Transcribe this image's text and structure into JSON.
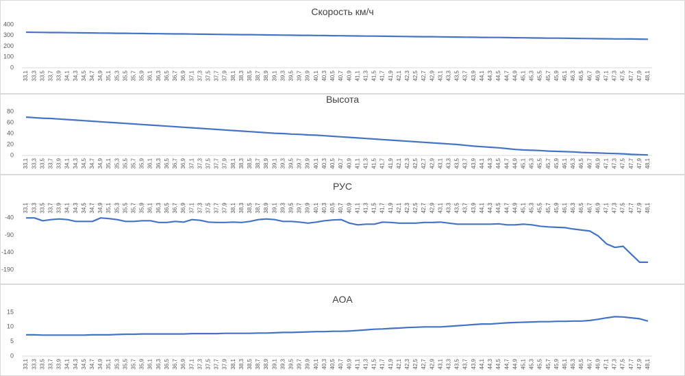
{
  "chart_data": [
    {
      "type": "line",
      "title": "Скорость км/ч",
      "categories": [
        "33,1",
        "33,3",
        "33,5",
        "33,7",
        "33,9",
        "34,1",
        "34,3",
        "34,5",
        "34,7",
        "34,9",
        "35,1",
        "35,3",
        "35,5",
        "35,7",
        "35,9",
        "36,1",
        "36,3",
        "36,5",
        "36,7",
        "36,9",
        "37,1",
        "37,3",
        "37,5",
        "37,7",
        "37,9",
        "38,1",
        "38,3",
        "38,5",
        "38,7",
        "38,9",
        "39,1",
        "39,3",
        "39,5",
        "39,7",
        "39,9",
        "40,1",
        "40,3",
        "40,5",
        "40,7",
        "40,9",
        "41,1",
        "41,3",
        "41,5",
        "41,7",
        "41,9",
        "42,1",
        "42,3",
        "42,5",
        "42,7",
        "42,9",
        "43,1",
        "43,3",
        "43,5",
        "43,7",
        "43,9",
        "44,1",
        "44,3",
        "44,5",
        "44,7",
        "44,9",
        "45,1",
        "45,3",
        "45,5",
        "45,7",
        "45,9",
        "46,1",
        "46,3",
        "46,5",
        "46,7",
        "46,9",
        "47,1",
        "47,3",
        "47,5",
        "47,7",
        "47,9",
        "48,1"
      ],
      "series": [
        {
          "color": "#4472c4",
          "values": [
            330,
            329,
            328,
            327,
            327,
            326,
            325,
            324,
            323,
            322,
            321,
            320,
            320,
            319,
            318,
            317,
            316,
            315,
            314,
            314,
            313,
            312,
            311,
            310,
            309,
            308,
            307,
            307,
            306,
            305,
            304,
            303,
            302,
            301,
            301,
            300,
            299,
            298,
            297,
            296,
            295,
            294,
            294,
            293,
            292,
            291,
            290,
            289,
            288,
            288,
            287,
            286,
            285,
            284,
            283,
            282,
            281,
            281,
            280,
            279,
            278,
            277,
            276,
            275,
            275,
            274,
            273,
            272,
            271,
            270,
            269,
            268,
            268,
            267,
            266,
            265
          ]
        }
      ],
      "ylim": [
        0,
        400
      ],
      "yticks": [
        0,
        100,
        200,
        300,
        400
      ]
    },
    {
      "type": "line",
      "title": "Высота",
      "categories": [
        "33,1",
        "33,3",
        "33,5",
        "33,7",
        "33,9",
        "34,1",
        "34,3",
        "34,5",
        "34,7",
        "34,9",
        "35,1",
        "35,3",
        "35,5",
        "35,7",
        "35,9",
        "36,1",
        "36,3",
        "36,5",
        "36,7",
        "36,9",
        "37,1",
        "37,3",
        "37,5",
        "37,7",
        "37,9",
        "38,1",
        "38,3",
        "38,5",
        "38,7",
        "38,9",
        "39,1",
        "39,3",
        "39,5",
        "39,7",
        "39,9",
        "40,1",
        "40,3",
        "40,5",
        "40,7",
        "40,9",
        "41,1",
        "41,3",
        "41,5",
        "41,7",
        "41,9",
        "42,1",
        "42,3",
        "42,5",
        "42,7",
        "42,9",
        "43,1",
        "43,3",
        "43,5",
        "43,7",
        "43,9",
        "44,1",
        "44,3",
        "44,5",
        "44,7",
        "44,9",
        "45,1",
        "45,3",
        "45,5",
        "45,7",
        "45,9",
        "46,1",
        "46,3",
        "46,5",
        "46,7",
        "46,9",
        "47,1",
        "47,3",
        "47,5",
        "47,7",
        "47,9",
        "48,1"
      ],
      "series": [
        {
          "color": "#4472c4",
          "values": [
            70,
            69,
            68,
            67.5,
            66.5,
            65.5,
            64.5,
            63.5,
            62.5,
            61.5,
            60.5,
            59.5,
            58.5,
            57.5,
            56.5,
            55.5,
            54.5,
            53.5,
            52.5,
            51.5,
            50.5,
            49.5,
            48.5,
            47.5,
            46.5,
            45.5,
            44.5,
            43.5,
            42.5,
            41.5,
            40.5,
            40,
            39,
            38.5,
            37.5,
            37,
            36,
            35,
            34,
            33,
            32,
            31,
            30,
            29,
            28,
            27,
            26,
            25,
            24,
            23,
            22,
            21,
            20,
            18.5,
            17,
            16,
            15,
            14,
            12.5,
            11,
            10,
            9.5,
            9,
            8,
            7.5,
            7,
            6.5,
            5.5,
            5,
            4.5,
            4,
            3.5,
            3,
            2,
            1.5,
            1
          ]
        }
      ],
      "ylim": [
        0,
        80
      ],
      "yticks": [
        0,
        20,
        40,
        60,
        80
      ]
    },
    {
      "type": "line",
      "title": "РУС",
      "categories": [
        "33,1",
        "33,3",
        "33,5",
        "33,7",
        "33,9",
        "34,1",
        "34,3",
        "34,5",
        "34,7",
        "34,9",
        "35,1",
        "35,3",
        "35,5",
        "35,7",
        "35,9",
        "36,1",
        "36,3",
        "36,5",
        "36,7",
        "36,9",
        "37,1",
        "37,3",
        "37,5",
        "37,7",
        "37,9",
        "38,1",
        "38,3",
        "38,5",
        "38,7",
        "38,9",
        "39,1",
        "39,3",
        "39,5",
        "39,7",
        "39,9",
        "40,1",
        "40,3",
        "40,5",
        "40,7",
        "40,9",
        "41,1",
        "41,3",
        "41,5",
        "41,7",
        "41,9",
        "42,1",
        "42,3",
        "42,5",
        "42,7",
        "42,9",
        "43,1",
        "43,3",
        "43,5",
        "43,7",
        "43,9",
        "44,1",
        "44,3",
        "44,5",
        "44,7",
        "44,9",
        "45,1",
        "45,3",
        "45,5",
        "45,7",
        "45,9",
        "46,1",
        "46,3",
        "46,5",
        "46,7",
        "46,9",
        "47,1",
        "47,3",
        "47,5",
        "47,7",
        "47,9",
        "48,1"
      ],
      "series": [
        {
          "color": "#4472c4",
          "values": [
            -40,
            -40,
            -48,
            -45,
            -43,
            -45,
            -50,
            -50,
            -50,
            -40,
            -42,
            -45,
            -50,
            -50,
            -48,
            -48,
            -53,
            -53,
            -50,
            -52,
            -45,
            -47,
            -52,
            -53,
            -53,
            -52,
            -53,
            -50,
            -45,
            -43,
            -45,
            -50,
            -50,
            -52,
            -55,
            -52,
            -48,
            -46,
            -45,
            -55,
            -60,
            -58,
            -58,
            -52,
            -53,
            -55,
            -55,
            -55,
            -53,
            -53,
            -52,
            -55,
            -58,
            -58,
            -58,
            -58,
            -58,
            -57,
            -60,
            -60,
            -58,
            -60,
            -64,
            -66,
            -67,
            -68,
            -72,
            -75,
            -78,
            -92,
            -115,
            -125,
            -122,
            -145,
            -168,
            -168
          ]
        }
      ],
      "ylim": [
        -190,
        0
      ],
      "yticks": [
        -40,
        -90,
        -140,
        -190
      ]
    },
    {
      "type": "line",
      "title": "AOA",
      "categories": [
        "33,1",
        "33,3",
        "33,5",
        "33,7",
        "33,9",
        "34,1",
        "34,3",
        "34,5",
        "34,7",
        "34,9",
        "35,1",
        "35,3",
        "35,5",
        "35,7",
        "35,9",
        "36,1",
        "36,3",
        "36,5",
        "36,7",
        "36,9",
        "37,1",
        "37,3",
        "37,5",
        "37,7",
        "37,9",
        "38,1",
        "38,3",
        "38,5",
        "38,7",
        "38,9",
        "39,1",
        "39,3",
        "39,5",
        "39,7",
        "39,9",
        "40,1",
        "40,3",
        "40,5",
        "40,7",
        "40,9",
        "41,1",
        "41,3",
        "41,5",
        "41,7",
        "41,9",
        "42,1",
        "42,3",
        "42,5",
        "42,7",
        "42,9",
        "43,1",
        "43,3",
        "43,5",
        "43,7",
        "43,9",
        "44,1",
        "44,3",
        "44,5",
        "44,7",
        "44,9",
        "45,1",
        "45,3",
        "45,5",
        "45,7",
        "45,9",
        "46,1",
        "46,3",
        "46,5",
        "46,7",
        "46,9",
        "47,1",
        "47,3",
        "47,5",
        "47,7",
        "47,9",
        "48,1"
      ],
      "series": [
        {
          "color": "#4472c4",
          "values": [
            7.3,
            7.3,
            7.2,
            7.2,
            7.2,
            7.2,
            7.2,
            7.2,
            7.3,
            7.3,
            7.3,
            7.4,
            7.5,
            7.5,
            7.6,
            7.6,
            7.6,
            7.6,
            7.6,
            7.6,
            7.7,
            7.7,
            7.7,
            7.7,
            7.8,
            7.8,
            7.8,
            7.8,
            7.9,
            7.9,
            8,
            8.1,
            8.1,
            8.2,
            8.3,
            8.4,
            8.4,
            8.5,
            8.5,
            8.6,
            8.8,
            9,
            9.2,
            9.3,
            9.5,
            9.6,
            9.8,
            9.9,
            10,
            10,
            10,
            10.2,
            10.4,
            10.6,
            10.8,
            11,
            11,
            11.2,
            11.4,
            11.5,
            11.6,
            11.7,
            11.8,
            11.8,
            11.9,
            11.9,
            12,
            12,
            12.2,
            12.6,
            13.1,
            13.5,
            13.4,
            13.1,
            12.8,
            12
          ]
        }
      ],
      "ylim": [
        0,
        15
      ],
      "yticks": [
        0,
        5,
        10,
        15
      ]
    }
  ]
}
